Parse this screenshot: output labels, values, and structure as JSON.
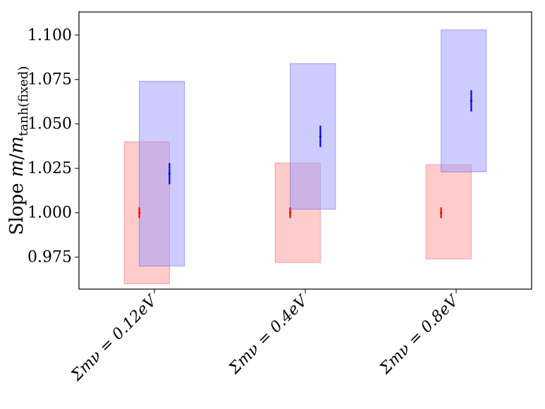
{
  "chart_data": {
    "type": "errorbar-with-boxes",
    "title": "",
    "ylabel": "Slope m/m_tanh(fixed)",
    "ylabel_parts": {
      "main": "Slope ",
      "m": "m",
      "slash": "/",
      "m2": "m",
      "sub": "tanh(fixed)"
    },
    "xlabel": "",
    "ylim": [
      0.957,
      1.113
    ],
    "yticks": [
      0.975,
      1.0,
      1.025,
      1.05,
      1.075,
      1.1
    ],
    "ytick_labels": [
      "0.975",
      "1.000",
      "1.025",
      "1.050",
      "1.075",
      "1.100"
    ],
    "categories": [
      "Σmν = 0.12eV",
      "Σmν = 0.4eV",
      "Σmν = 0.8eV"
    ],
    "series": [
      {
        "name": "red",
        "color": "#ff0000",
        "box_color": "#ff9999",
        "x_offset": -0.1,
        "values": [
          1.0,
          1.0,
          1.0
        ],
        "errors": [
          0.003,
          0.003,
          0.003
        ],
        "box_x": [
          [
            -0.2,
            0.1
          ],
          [
            -0.2,
            0.1
          ],
          [
            -0.2,
            0.1
          ]
        ],
        "box_y": [
          [
            0.96,
            1.04
          ],
          [
            0.972,
            1.028
          ],
          [
            0.974,
            1.027
          ]
        ]
      },
      {
        "name": "blue",
        "color": "#0000ff",
        "box_color": "#9999ff",
        "x_offset": 0.1,
        "values": [
          1.022,
          1.043,
          1.063
        ],
        "errors": [
          0.006,
          0.006,
          0.006
        ],
        "box_x": [
          [
            -0.1,
            0.2
          ],
          [
            -0.1,
            0.2
          ],
          [
            -0.1,
            0.2
          ]
        ],
        "box_y": [
          [
            0.97,
            1.074
          ],
          [
            1.002,
            1.084
          ],
          [
            1.023,
            1.103
          ]
        ]
      }
    ]
  }
}
